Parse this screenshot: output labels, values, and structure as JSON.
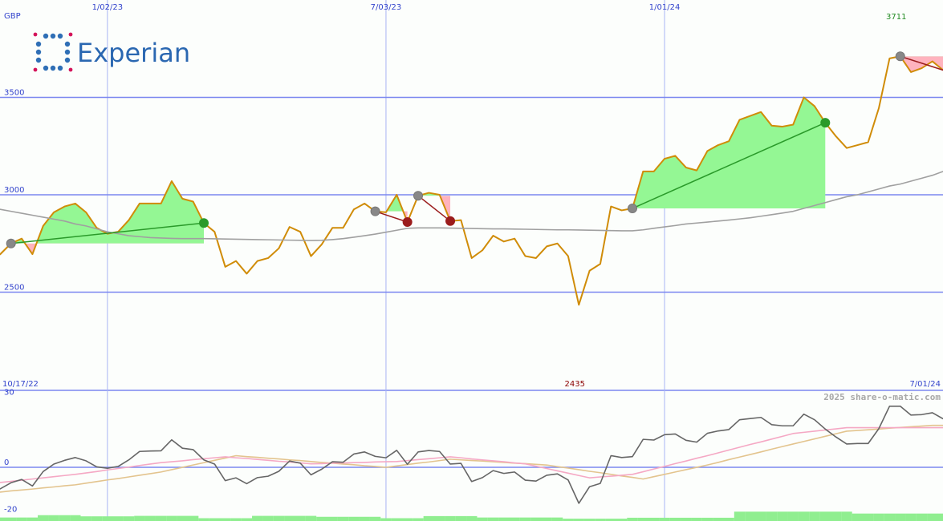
{
  "logo": "Experian",
  "chart_data": [
    {
      "type": "line",
      "y_label": "GBP",
      "categories": [
        "10/17/22",
        null,
        null,
        null,
        null,
        null,
        null,
        null,
        null,
        null,
        null,
        "1/02/23",
        null,
        null,
        null,
        null,
        null,
        null,
        null,
        null,
        null,
        null,
        null,
        null,
        null,
        null,
        null,
        null,
        null,
        null,
        null,
        null,
        null,
        null,
        null,
        null,
        null,
        "7/03/23",
        null,
        null,
        null,
        null,
        null,
        null,
        null,
        null,
        null,
        null,
        null,
        null,
        null,
        null,
        null,
        null,
        null,
        null,
        null,
        null,
        null,
        null,
        null,
        null,
        null,
        "1/01/24",
        null,
        null,
        null,
        null,
        null,
        null,
        null,
        null,
        null,
        null,
        null,
        null,
        null,
        null,
        null,
        null,
        null,
        null,
        null,
        null,
        null,
        null,
        null,
        null,
        null,
        "7/01/24"
      ],
      "series": [
        {
          "color": "#d08c08",
          "values": [
            2665,
            2695,
            2750,
            2775,
            2695,
            2840,
            2910,
            2940,
            2955,
            2910,
            2830,
            2800,
            2810,
            2870,
            2955,
            2955,
            2955,
            3070,
            2980,
            2965,
            2855,
            2810,
            2630,
            2660,
            2595,
            2660,
            2675,
            2725,
            2835,
            2810,
            2685,
            2745,
            2830,
            2830,
            2925,
            2955,
            2915,
            2910,
            3000,
            2860,
            2995,
            3010,
            3000,
            2865,
            2870,
            2675,
            2715,
            2790,
            2760,
            2775,
            2685,
            2675,
            2735,
            2750,
            2685,
            2435,
            2610,
            2645,
            2940,
            2920,
            2930,
            3120,
            3120,
            3185,
            3200,
            3140,
            3125,
            3225,
            3255,
            3275,
            3385,
            3405,
            3425,
            3355,
            3350,
            3360,
            3500,
            3455,
            3370,
            3300,
            3240,
            3255,
            3270,
            3445,
            3700,
            3711,
            3630,
            3650,
            3685,
            3640
          ]
        },
        {
          "color": "#a0a0a0",
          "values": [
            2935,
            2925,
            2915,
            2905,
            2895,
            2885,
            2875,
            2865,
            2850,
            2840,
            2825,
            2810,
            2800,
            2790,
            2785,
            2780,
            2778,
            2776,
            2775,
            2775,
            2775,
            2774,
            2773,
            2772,
            2771,
            2770,
            2769,
            2768,
            2767,
            2766,
            2765,
            2766,
            2770,
            2775,
            2782,
            2790,
            2798,
            2808,
            2818,
            2828,
            2830,
            2830,
            2830,
            2829,
            2828,
            2827,
            2826,
            2825,
            2825,
            2824,
            2823,
            2822,
            2821,
            2820,
            2820,
            2819,
            2818,
            2817,
            2816,
            2815,
            2815,
            2820,
            2828,
            2835,
            2842,
            2850,
            2855,
            2860,
            2865,
            2870,
            2876,
            2882,
            2890,
            2898,
            2906,
            2915,
            2930,
            2945,
            2960,
            2975,
            2990,
            3000,
            3015,
            3030,
            3045,
            3055,
            3070,
            3085,
            3100,
            3120
          ]
        }
      ],
      "trades": [
        {
          "entry": 2,
          "exit": 20,
          "color": "#2a9a2a"
        },
        {
          "entry": 36,
          "exit": 39,
          "color": "#9b1c1c"
        },
        {
          "entry": 40,
          "exit": 43,
          "color": "#9b1c1c"
        },
        {
          "entry": 60,
          "exit": 78,
          "color": "#2a9a2a"
        },
        {
          "entry": 85,
          "exit": null,
          "color": "#9b1c1c"
        }
      ],
      "fill_up": "#94f794",
      "fill_down": "#ffb3be",
      "max_label": 3711,
      "max_color": "#228b22",
      "min_label": 2435,
      "min_color": "#8b0000",
      "ylim": [
        2000,
        4000
      ],
      "yticks": [
        2500,
        3000,
        3500
      ],
      "grid": true
    },
    {
      "type": "line",
      "credit": "2025 share-o-matic.com",
      "series": [
        {
          "type": "bar",
          "color": "#90ee90",
          "values": [
            -21.5,
            -21.5,
            -21.5,
            -21.5,
            -21.5,
            -20.5,
            -20.5,
            -20.5,
            -20.5,
            -21,
            -21,
            -21,
            -21,
            -21,
            -20.8,
            -20.8,
            -20.8,
            -20.8,
            -20.8,
            -20.8,
            -21.8,
            -21.8,
            -21.8,
            -21.8,
            -21.8,
            -20.8,
            -20.8,
            -20.8,
            -20.8,
            -20.8,
            -20.8,
            -21.2,
            -21.2,
            -21.2,
            -21.2,
            -21.2,
            -21.2,
            -21.8,
            -21.8,
            -21.8,
            -21.8,
            -20.9,
            -20.9,
            -20.9,
            -20.9,
            -20.9,
            -21.5,
            -21.5,
            -21.5,
            -21.5,
            -21.5,
            -21.5,
            -21.5,
            -21.5,
            -22,
            -22,
            -22,
            -22,
            -22,
            -22,
            -21.6,
            -21.6,
            -21.6,
            -21.6,
            -21.6,
            -21.6,
            -21.6,
            -21.6,
            -21.6,
            -21.6,
            -19,
            -19,
            -19,
            -19,
            -19,
            -19,
            -19,
            -19,
            -19,
            -19,
            -19,
            -19.8,
            -19.8,
            -19.8,
            -19.8,
            -19.8,
            -19.8,
            -19.8,
            -19.8,
            -19.8
          ]
        },
        {
          "color": "#e3c48e",
          "values": [
            -11,
            -10.6,
            -10.1,
            -9.7,
            -9.3,
            -8.8,
            -8.4,
            -7.9,
            -7.5,
            -6.8,
            -6.1,
            -5.4,
            -4.8,
            -4.1,
            -3.4,
            -2.7,
            -2,
            -1,
            0,
            1,
            2,
            3,
            4,
            5,
            4.6,
            4.3,
            3.9,
            3.6,
            3.2,
            2.9,
            2.5,
            2.1,
            1.8,
            1.4,
            1.1,
            0.7,
            0.4,
            0,
            0.6,
            1.2,
            1.8,
            2.3,
            2.9,
            3.5,
            3.2,
            2.9,
            2.7,
            2.4,
            2.1,
            1.8,
            1.6,
            1.3,
            1,
            0.3,
            -0.3,
            -1,
            -1.7,
            -2.3,
            -3,
            -3.7,
            -4.3,
            -5,
            -4,
            -3,
            -2,
            -1,
            0,
            1,
            2.1,
            3.3,
            4.4,
            5.5,
            6.6,
            7.8,
            8.9,
            10,
            11.1,
            12.2,
            13.3,
            14.4,
            15.5,
            15.8,
            16.1,
            16.4,
            16.8,
            17.1,
            17.4,
            17.7,
            18,
            18
          ]
        },
        {
          "color": "#f5a8c4",
          "values": [
            -7,
            -6.5,
            -6,
            -5.5,
            -5,
            -4.5,
            -4,
            -3.5,
            -3,
            -2.4,
            -1.8,
            -1.1,
            -0.5,
            0.1,
            0.8,
            1.4,
            2,
            2.4,
            2.8,
            3.3,
            3.7,
            4.1,
            4.5,
            4.1,
            3.8,
            3.4,
            3,
            2.6,
            2.3,
            1.9,
            1.5,
            1.6,
            1.8,
            1.9,
            2,
            2.1,
            2.3,
            2.4,
            2.5,
            2.9,
            3.3,
            3.7,
            4.1,
            4.5,
            4.1,
            3.6,
            3.2,
            2.8,
            2.4,
            1.9,
            1.5,
            0.5,
            -0.5,
            -1.5,
            -2.5,
            -3.5,
            -4.5,
            -4.1,
            -3.8,
            -3.4,
            -3,
            -1.9,
            -0.7,
            0.4,
            1.6,
            2.7,
            3.9,
            5,
            6.2,
            7.4,
            8.6,
            9.8,
            10.9,
            12.1,
            13.3,
            14.5,
            15,
            15.5,
            16,
            16.5,
            17,
            17,
            17,
            17,
            17,
            17,
            17,
            17,
            17,
            17
          ]
        },
        {
          "color": "#666666",
          "values": [
            -10.8,
            -9.2,
            -6.6,
            -5.2,
            -8,
            -1.8,
            1.4,
            3,
            4.2,
            2.8,
            0.2,
            -0.4,
            0.4,
            3.2,
            6.8,
            7,
            7.1,
            11.8,
            8.2,
            7.6,
            3.2,
            1.4,
            -5.7,
            -4.5,
            -7,
            -4.4,
            -3.8,
            -1.7,
            2.7,
            1.8,
            -3.2,
            -0.8,
            2.4,
            2.2,
            5.7,
            6.6,
            4.7,
            4.1,
            7.3,
            1.3,
            6.6,
            7.2,
            6.8,
            1.4,
            1.7,
            -6.1,
            -4.4,
            -1.4,
            -2.6,
            -2,
            -5.5,
            -5.9,
            -3.4,
            -2.8,
            -5.4,
            -15.4,
            -8.3,
            -6.9,
            5,
            4.2,
            4.6,
            12,
            11.7,
            14,
            14.3,
            11.6,
            10.8,
            14.6,
            15.6,
            16.2,
            20.4,
            20.9,
            21.4,
            18.3,
            17.8,
            17.8,
            22.8,
            20.4,
            16.4,
            13,
            10,
            10.2,
            10.2,
            16.6,
            26.2,
            26.2,
            22.4,
            22.6,
            23.4,
            20.8
          ]
        }
      ],
      "ylim": [
        -23,
        33
      ],
      "yticks": [
        -20,
        0,
        30
      ],
      "grid": "zero"
    }
  ]
}
